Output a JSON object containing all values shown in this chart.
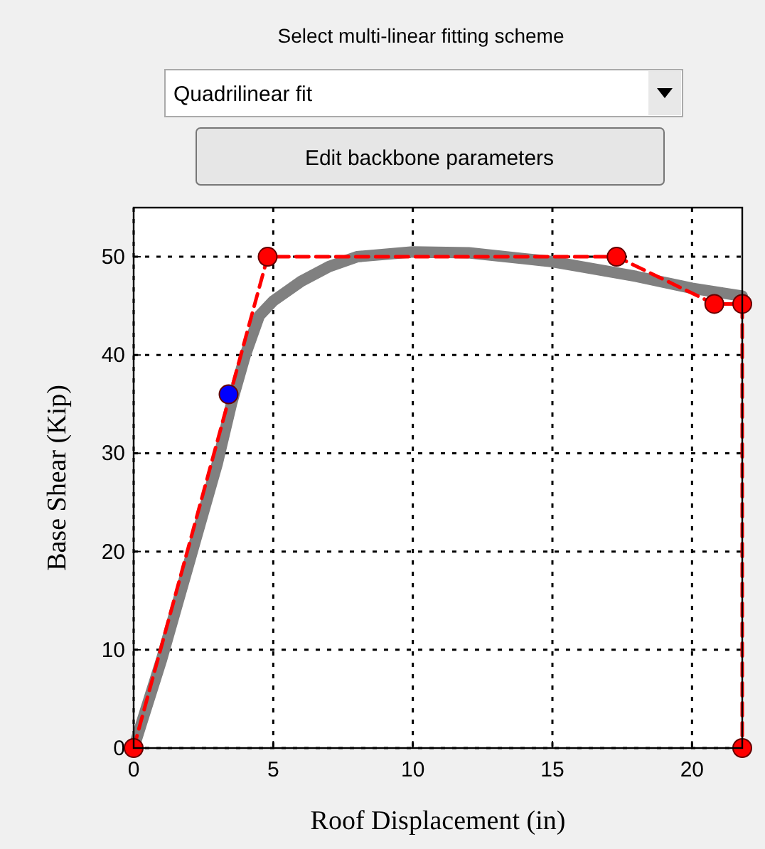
{
  "chart_data": {
    "type": "line",
    "xlabel": "Roof Displacement (in)",
    "ylabel": "Base Shear (Kip)",
    "annotations": [
      "Select multi-linear fitting scheme",
      "Quadrilinear fit",
      "Edit backbone parameters"
    ],
    "xlim": [
      0,
      21.8
    ],
    "ylim": [
      0,
      55
    ],
    "xticks": [
      0,
      5,
      10,
      15,
      20
    ],
    "yticks": [
      0,
      10,
      20,
      30,
      40,
      50
    ],
    "grid": true,
    "series": [
      {
        "color": "#808080",
        "marker": "none",
        "line_style": "solid",
        "x": [
          0,
          1,
          2,
          3,
          3.5,
          4,
          4.5,
          5,
          6,
          7,
          8,
          10,
          12,
          14,
          15,
          16,
          18,
          20,
          21.8
        ],
        "values": [
          0,
          9,
          19,
          29,
          35,
          40,
          44,
          45.5,
          47.5,
          49,
          50,
          50.5,
          50.4,
          49.8,
          49.5,
          49,
          48,
          46.8,
          46
        ]
      },
      {
        "color": "#ff0000",
        "marker": "circle",
        "line_style": "dashed",
        "x": [
          0,
          4.8,
          17.3,
          20.8,
          21.8,
          21.8
        ],
        "values": [
          0,
          50,
          50,
          45.2,
          45.2,
          0
        ]
      },
      {
        "type": "scatter",
        "color": "#0000ff",
        "marker": "circle",
        "x": [
          3.4
        ],
        "values": [
          36
        ]
      }
    ]
  }
}
